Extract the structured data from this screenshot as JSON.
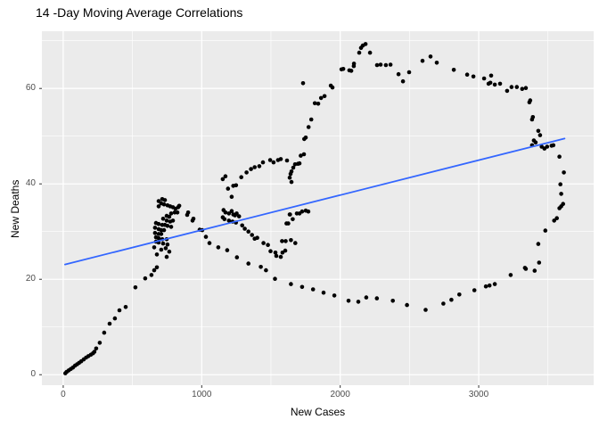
{
  "title": "14 -Day Moving Average Correlations",
  "x_axis": {
    "label": "New Cases",
    "tick_labels": [
      "0",
      "1000",
      "2000",
      "3000"
    ],
    "tick_values": [
      0,
      1000,
      2000,
      3000
    ],
    "minor_values": [
      500,
      1500,
      2500,
      3500
    ]
  },
  "y_axis": {
    "label": "New Deaths",
    "tick_labels": [
      "0",
      "20",
      "40",
      "60"
    ],
    "tick_values": [
      0,
      20,
      40,
      60
    ],
    "minor_values": [
      10,
      30,
      50,
      70
    ]
  },
  "colors": {
    "panel_bg": "#EBEBEB",
    "grid_major": "#FFFFFF",
    "grid_minor": "#FFFFFF",
    "point": "#000000",
    "trend_line": "#3366FF",
    "tick_text": "#4D4D4D",
    "axis_text": "#000000",
    "tick_mark": "#333333"
  },
  "chart_data": {
    "type": "scatter",
    "title": "14 -Day Moving Average Correlations",
    "xlabel": "New Cases",
    "ylabel": "New Deaths",
    "xlim": [
      -154,
      3830
    ],
    "ylim": [
      -2.2,
      72.0
    ],
    "grid": true,
    "legend": false,
    "trend_line": {
      "type": "linear",
      "x": [
        13,
        3620
      ],
      "y": [
        23.1,
        49.5
      ],
      "width": 1.8
    },
    "point_radius": 2.3,
    "points": [
      [
        15,
        0.3
      ],
      [
        25,
        0.6
      ],
      [
        40,
        0.9
      ],
      [
        55,
        1.2
      ],
      [
        70,
        1.5
      ],
      [
        85,
        1.9
      ],
      [
        100,
        2.2
      ],
      [
        115,
        2.5
      ],
      [
        130,
        2.8
      ],
      [
        148,
        3.2
      ],
      [
        165,
        3.6
      ],
      [
        182,
        3.9
      ],
      [
        200,
        4.2
      ],
      [
        215,
        4.5
      ],
      [
        225,
        4.8
      ],
      [
        238,
        5.5
      ],
      [
        264,
        6.7
      ],
      [
        296,
        8.8
      ],
      [
        335,
        10.7
      ],
      [
        373,
        11.8
      ],
      [
        406,
        13.5
      ],
      [
        451,
        14.2
      ],
      [
        521,
        18.3
      ],
      [
        592,
        20.2
      ],
      [
        637,
        20.9
      ],
      [
        657,
        21.9
      ],
      [
        676,
        22.5
      ],
      [
        689,
        36.4
      ],
      [
        715,
        36.8
      ],
      [
        734,
        36.6
      ],
      [
        708,
        35.9
      ],
      [
        728,
        35.7
      ],
      [
        689,
        35.3
      ],
      [
        753,
        35.5
      ],
      [
        772,
        35.3
      ],
      [
        792,
        35.1
      ],
      [
        811,
        34.8
      ],
      [
        830,
        35.1
      ],
      [
        805,
        34.0
      ],
      [
        824,
        34.0
      ],
      [
        779,
        33.8
      ],
      [
        895,
        33.5
      ],
      [
        747,
        33.3
      ],
      [
        766,
        33.1
      ],
      [
        721,
        32.7
      ],
      [
        940,
        32.7
      ],
      [
        747,
        32.3
      ],
      [
        792,
        32.3
      ],
      [
        772,
        32.1
      ],
      [
        670,
        31.8
      ],
      [
        689,
        31.6
      ],
      [
        715,
        31.4
      ],
      [
        734,
        31.4
      ],
      [
        753,
        31.2
      ],
      [
        779,
        31.0
      ],
      [
        663,
        30.8
      ],
      [
        689,
        30.5
      ],
      [
        708,
        30.3
      ],
      [
        728,
        30.3
      ],
      [
        1004,
        30.3
      ],
      [
        663,
        29.7
      ],
      [
        689,
        29.5
      ],
      [
        708,
        29.5
      ],
      [
        670,
        28.8
      ],
      [
        689,
        28.6
      ],
      [
        715,
        28.4
      ],
      [
        747,
        28.4
      ],
      [
        670,
        27.9
      ],
      [
        689,
        27.7
      ],
      [
        721,
        27.5
      ],
      [
        753,
        27.3
      ],
      [
        740,
        26.5
      ],
      [
        708,
        26.2
      ],
      [
        657,
        26.7
      ],
      [
        766,
        25.8
      ],
      [
        676,
        25.2
      ],
      [
        747,
        24.7
      ],
      [
        838,
        35.4
      ],
      [
        902,
        34.0
      ],
      [
        934,
        32.3
      ],
      [
        985,
        30.4
      ],
      [
        1030,
        28.9
      ],
      [
        1056,
        27.6
      ],
      [
        1120,
        26.7
      ],
      [
        1184,
        26.1
      ],
      [
        1254,
        24.6
      ],
      [
        1337,
        23.3
      ],
      [
        1427,
        22.6
      ],
      [
        1464,
        21.9
      ],
      [
        1529,
        20.1
      ],
      [
        1644,
        19.0
      ],
      [
        1725,
        18.4
      ],
      [
        1804,
        17.9
      ],
      [
        1880,
        17.2
      ],
      [
        1958,
        16.6
      ],
      [
        2060,
        15.5
      ],
      [
        2131,
        15.3
      ],
      [
        2188,
        16.2
      ],
      [
        2265,
        16.0
      ],
      [
        2380,
        15.5
      ],
      [
        2482,
        14.6
      ],
      [
        2617,
        13.6
      ],
      [
        2745,
        14.9
      ],
      [
        2803,
        15.7
      ],
      [
        2860,
        16.8
      ],
      [
        2969,
        17.7
      ],
      [
        3052,
        18.5
      ],
      [
        3078,
        18.7
      ],
      [
        3116,
        19.0
      ],
      [
        3231,
        20.9
      ],
      [
        3334,
        22.4
      ],
      [
        3404,
        21.8
      ],
      [
        3436,
        23.5
      ],
      [
        1532,
        25.6
      ],
      [
        1539,
        24.9
      ],
      [
        1571,
        24.7
      ],
      [
        1583,
        25.6
      ],
      [
        1603,
        26.0
      ],
      [
        1158,
        34.5
      ],
      [
        1171,
        34.0
      ],
      [
        1196,
        33.8
      ],
      [
        1216,
        34.3
      ],
      [
        1228,
        33.6
      ],
      [
        1240,
        33.4
      ],
      [
        1252,
        33.8
      ],
      [
        1270,
        33.2
      ],
      [
        1152,
        33.0
      ],
      [
        1164,
        32.6
      ],
      [
        1196,
        32.3
      ],
      [
        1222,
        32.1
      ],
      [
        1247,
        31.9
      ],
      [
        1292,
        31.3
      ],
      [
        1311,
        30.6
      ],
      [
        1337,
        30.0
      ],
      [
        1363,
        29.3
      ],
      [
        1382,
        28.5
      ],
      [
        1401,
        28.7
      ],
      [
        1446,
        27.6
      ],
      [
        1478,
        27.2
      ],
      [
        1497,
        25.9
      ],
      [
        1152,
        41.0
      ],
      [
        1171,
        41.6
      ],
      [
        1190,
        39.0
      ],
      [
        1216,
        37.3
      ],
      [
        1228,
        39.6
      ],
      [
        1248,
        39.7
      ],
      [
        1286,
        41.4
      ],
      [
        1324,
        42.4
      ],
      [
        1356,
        43.1
      ],
      [
        1382,
        43.5
      ],
      [
        1416,
        43.7
      ],
      [
        1442,
        44.5
      ],
      [
        1494,
        45.0
      ],
      [
        1519,
        44.5
      ],
      [
        1551,
        45.0
      ],
      [
        1571,
        45.2
      ],
      [
        1616,
        44.9
      ],
      [
        1674,
        44.1
      ],
      [
        1706,
        44.3
      ],
      [
        1661,
        43.4
      ],
      [
        1648,
        42.6
      ],
      [
        1642,
        42.1
      ],
      [
        1635,
        41.3
      ],
      [
        1648,
        40.4
      ],
      [
        1738,
        46.2
      ],
      [
        1751,
        49.7
      ],
      [
        1580,
        28.0
      ],
      [
        1606,
        28.0
      ],
      [
        1625,
        31.7
      ],
      [
        1644,
        28.2
      ],
      [
        1676,
        27.6
      ],
      [
        1612,
        31.7
      ],
      [
        1638,
        33.6
      ],
      [
        1657,
        32.6
      ],
      [
        1635,
        33.6
      ],
      [
        1687,
        33.8
      ],
      [
        1706,
        33.8
      ],
      [
        1725,
        34.2
      ],
      [
        1751,
        34.4
      ],
      [
        1770,
        34.2
      ],
      [
        1695,
        44.2
      ],
      [
        1715,
        45.9
      ],
      [
        1740,
        49.4
      ],
      [
        1772,
        51.9
      ],
      [
        1791,
        53.5
      ],
      [
        1817,
        56.9
      ],
      [
        1841,
        56.8
      ],
      [
        1862,
        58.0
      ],
      [
        1887,
        58.4
      ],
      [
        1932,
        60.6
      ],
      [
        1944,
        60.2
      ],
      [
        1732,
        61.1
      ],
      [
        2022,
        64.1
      ],
      [
        2080,
        63.7
      ],
      [
        2099,
        65.2
      ],
      [
        2009,
        64.0
      ],
      [
        2066,
        63.8
      ],
      [
        2098,
        64.7
      ],
      [
        2137,
        67.5
      ],
      [
        2150,
        68.5
      ],
      [
        2163,
        69.0
      ],
      [
        2183,
        69.3
      ],
      [
        2215,
        67.5
      ],
      [
        2266,
        64.9
      ],
      [
        2292,
        65.0
      ],
      [
        2330,
        64.9
      ],
      [
        2363,
        65.0
      ],
      [
        2421,
        63.0
      ],
      [
        2453,
        61.5
      ],
      [
        2498,
        63.4
      ],
      [
        2594,
        65.8
      ],
      [
        2652,
        66.7
      ],
      [
        2697,
        65.4
      ],
      [
        2820,
        63.9
      ],
      [
        2917,
        62.9
      ],
      [
        2962,
        62.5
      ],
      [
        3039,
        62.1
      ],
      [
        3071,
        61.0
      ],
      [
        3090,
        62.7
      ],
      [
        3084,
        61.2
      ],
      [
        3116,
        60.8
      ],
      [
        3154,
        61.0
      ],
      [
        3205,
        59.5
      ],
      [
        3237,
        60.3
      ],
      [
        3275,
        60.3
      ],
      [
        3314,
        59.9
      ],
      [
        3340,
        60.1
      ],
      [
        3366,
        57.1
      ],
      [
        3372,
        57.5
      ],
      [
        3385,
        53.5
      ],
      [
        3391,
        54.0
      ],
      [
        3430,
        51.1
      ],
      [
        3443,
        50.2
      ],
      [
        3398,
        49.1
      ],
      [
        3411,
        48.7
      ],
      [
        3385,
        48.1
      ],
      [
        3455,
        47.8
      ],
      [
        3475,
        47.4
      ],
      [
        3494,
        47.8
      ],
      [
        3526,
        48.0
      ],
      [
        3539,
        48.1
      ],
      [
        3583,
        45.7
      ],
      [
        3615,
        42.4
      ],
      [
        3590,
        39.9
      ],
      [
        3596,
        37.9
      ],
      [
        3609,
        35.8
      ],
      [
        3583,
        34.9
      ],
      [
        3596,
        35.3
      ],
      [
        3564,
        32.8
      ],
      [
        3545,
        32.3
      ],
      [
        3481,
        30.2
      ],
      [
        3430,
        27.4
      ],
      [
        3340,
        22.2
      ]
    ]
  }
}
